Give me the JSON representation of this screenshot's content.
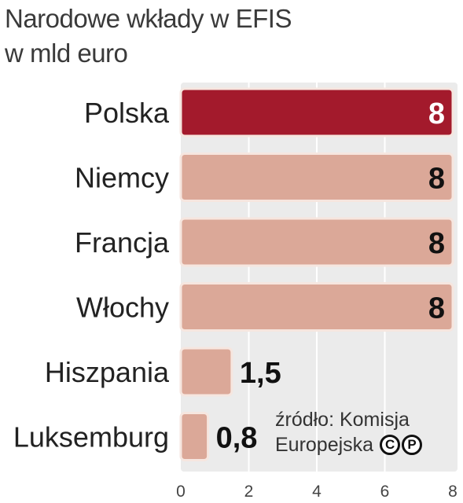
{
  "title": {
    "line1": "Narodowe wkłady w EFIS",
    "line2": "w mld euro"
  },
  "source": {
    "line1": "źródło: Komisja",
    "line2": "Europejska"
  },
  "icons": [
    "copyright-icon",
    "p-icon"
  ],
  "colors": {
    "highlight": "#a31a2c",
    "bar": "#dba898",
    "bar_stroke": "#f6e6df",
    "panel": "#ebebeb",
    "grid": "#ffffff"
  },
  "chart_data": {
    "type": "bar",
    "orientation": "horizontal",
    "categories": [
      "Polska",
      "Niemcy",
      "Francja",
      "Włochy",
      "Hiszpania",
      "Luksemburg"
    ],
    "values": [
      8,
      8,
      8,
      8,
      1.5,
      0.8
    ],
    "value_labels": [
      "8",
      "8",
      "8",
      "8",
      "1,5",
      "0,8"
    ],
    "highlight": "Polska",
    "xlim": [
      0,
      8
    ],
    "xticks": [
      "0",
      "2",
      "4",
      "6",
      "8"
    ],
    "grid": true
  }
}
